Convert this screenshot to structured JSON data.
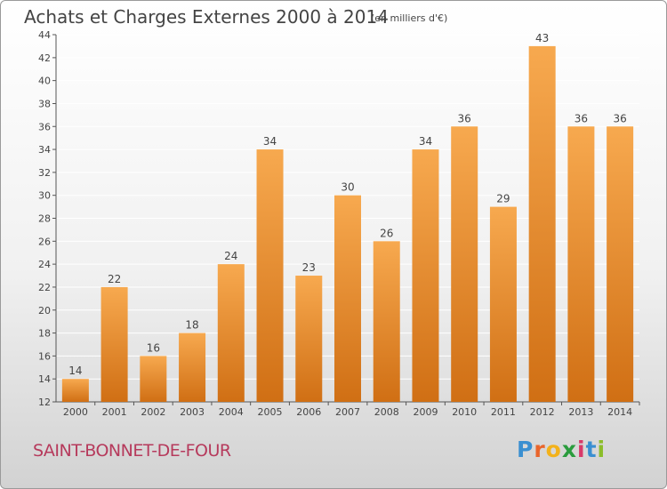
{
  "title": "Achats et Charges Externes 2000 à 2014",
  "unit_note": "(en milliers d'€)",
  "commune": "SAINT-BONNET-DE-FOUR",
  "logo": {
    "letters": [
      "P",
      "r",
      "o",
      "x",
      "i",
      "t",
      "i"
    ],
    "colors": [
      "#3a8fd1",
      "#e9652b",
      "#f3b21b",
      "#2a9c3d",
      "#d93a6a",
      "#3a8fd1",
      "#8bbd2a"
    ]
  },
  "colors": {
    "bar_light": "#f7a94f",
    "bar_dark": "#d06f14",
    "text": "#444444",
    "grid": "#ffffff"
  },
  "chart_data": {
    "type": "bar",
    "title": "Achats et Charges Externes 2000 à 2014",
    "categories": [
      "2000",
      "2001",
      "2002",
      "2003",
      "2004",
      "2005",
      "2006",
      "2007",
      "2008",
      "2009",
      "2010",
      "2011",
      "2012",
      "2013",
      "2014"
    ],
    "values": [
      14,
      22,
      16,
      18,
      24,
      34,
      23,
      30,
      26,
      34,
      36,
      29,
      43,
      36,
      36
    ],
    "ylim": [
      12,
      44
    ],
    "yticks": [
      12,
      14,
      16,
      18,
      20,
      22,
      24,
      26,
      28,
      30,
      32,
      34,
      36,
      38,
      40,
      42,
      44
    ],
    "grid": true,
    "data_labels": true
  }
}
